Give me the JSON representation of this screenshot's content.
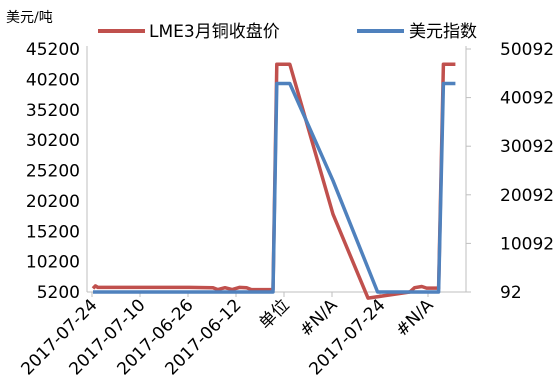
{
  "chart_data": {
    "type": "line",
    "unit_label": "美元/吨",
    "categories": [
      "2017-07-24",
      "2017-07-10",
      "2017-06-26",
      "2017-06-12",
      "单位",
      "#N/A",
      "2017-07-24",
      "#N/A"
    ],
    "left_axis": {
      "ticks": [
        "5200",
        "10200",
        "15200",
        "20200",
        "25200",
        "30200",
        "35200",
        "40200",
        "45200"
      ],
      "range": [
        5200,
        45200
      ]
    },
    "right_axis": {
      "ticks": [
        "92",
        "10092",
        "20092",
        "30092",
        "40092",
        "50092"
      ],
      "range": [
        92,
        50092
      ]
    },
    "legend_position": "top",
    "series": [
      {
        "name": "LME3月铜收盘价",
        "axis": "left",
        "color": "#c0504d",
        "points": [
          [
            0.0,
            5800
          ],
          [
            0.05,
            6200
          ],
          [
            0.1,
            5950
          ],
          [
            0.5,
            5950
          ],
          [
            1.0,
            5950
          ],
          [
            1.5,
            5950
          ],
          [
            2.0,
            5950
          ],
          [
            2.5,
            5900
          ],
          [
            2.6,
            5600
          ],
          [
            2.75,
            5900
          ],
          [
            2.9,
            5600
          ],
          [
            3.05,
            5950
          ],
          [
            3.2,
            5900
          ],
          [
            3.3,
            5600
          ],
          [
            3.5,
            5600
          ],
          [
            3.75,
            5600
          ],
          [
            3.83,
            42700
          ],
          [
            4.1,
            42700
          ],
          [
            5.0,
            18000
          ],
          [
            5.73,
            4200
          ],
          [
            6.6,
            5200
          ],
          [
            6.7,
            5900
          ],
          [
            6.85,
            6100
          ],
          [
            6.95,
            5850
          ],
          [
            7.2,
            5850
          ],
          [
            7.3,
            42700
          ],
          [
            7.55,
            42700
          ]
        ]
      },
      {
        "name": "美元指数",
        "axis": "right",
        "color": "#4f81bd",
        "points": [
          [
            0.0,
            92
          ],
          [
            3.75,
            92
          ],
          [
            3.83,
            43000
          ],
          [
            4.1,
            43000
          ],
          [
            5.0,
            23000
          ],
          [
            5.93,
            92
          ],
          [
            6.5,
            92
          ],
          [
            7.2,
            92
          ],
          [
            7.3,
            43000
          ],
          [
            7.55,
            43000
          ]
        ]
      }
    ]
  }
}
